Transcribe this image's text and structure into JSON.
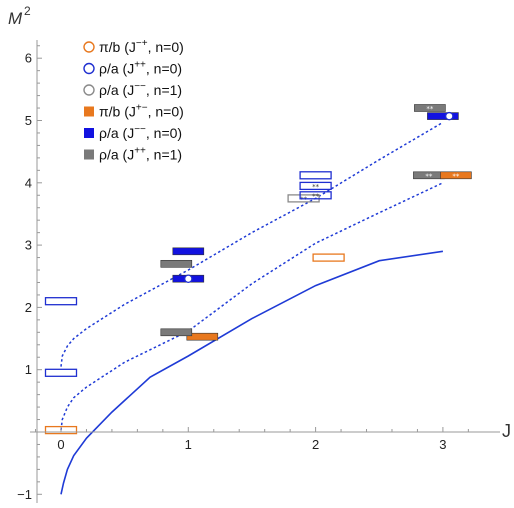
{
  "chart_data": {
    "type": "scatter",
    "xlabel": "J",
    "ylabel": "M",
    "ylabel_sup": "2",
    "xlim": [
      -0.22,
      3.45
    ],
    "ylim": [
      -1.15,
      6.55
    ],
    "xticks": [
      0,
      1,
      2,
      3
    ],
    "yticks": [
      -1,
      1,
      2,
      3,
      4,
      5,
      6
    ],
    "tick_labels_y": [
      "−1",
      "1",
      "2",
      "3",
      "4",
      "5",
      "6"
    ],
    "legend": [
      {
        "marker": "circle-open",
        "color": "#e8781e",
        "label_pre": "π/b (J",
        "label_sup": "−+",
        "label_post": ", n=0)"
      },
      {
        "marker": "circle-open",
        "color": "#1f2fd0",
        "label_pre": "ρ/a (J",
        "label_sup": "++",
        "label_post": ", n=0)"
      },
      {
        "marker": "circle-open",
        "color": "#8a8a8a",
        "label_pre": "ρ/a (J",
        "label_sup": "−−",
        "label_post": ", n=1)"
      },
      {
        "marker": "square",
        "color": "#e8781e",
        "label_pre": "π/b (J",
        "label_sup": "+−",
        "label_post": ", n=0)"
      },
      {
        "marker": "square",
        "color": "#1212e0",
        "label_pre": "ρ/a (J",
        "label_sup": "−−",
        "label_post": ", n=0)"
      },
      {
        "marker": "square",
        "color": "#7a7a7a",
        "label_pre": "ρ/a (J",
        "label_sup": "++",
        "label_post": ", n=1)"
      }
    ],
    "curves": [
      {
        "name": "solid",
        "style": "solid",
        "color": "#1f3bd6",
        "points": [
          [
            0,
            -1
          ],
          [
            0.02,
            -0.82
          ],
          [
            0.05,
            -0.6
          ],
          [
            0.1,
            -0.38
          ],
          [
            0.2,
            -0.1
          ],
          [
            0.4,
            0.32
          ],
          [
            0.7,
            0.88
          ],
          [
            1.0,
            1.22
          ],
          [
            1.5,
            1.82
          ],
          [
            2.0,
            2.35
          ],
          [
            2.5,
            2.75
          ],
          [
            3.0,
            2.9
          ]
        ]
      },
      {
        "name": "dashed-lower",
        "style": "dashed",
        "color": "#1f3bd6",
        "points": [
          [
            0,
            0.03
          ],
          [
            0.01,
            0.2
          ],
          [
            0.05,
            0.4
          ],
          [
            0.1,
            0.55
          ],
          [
            0.2,
            0.72
          ],
          [
            0.5,
            1.12
          ],
          [
            1.0,
            1.62
          ],
          [
            1.5,
            2.38
          ],
          [
            2.0,
            3.03
          ],
          [
            2.5,
            3.52
          ],
          [
            3.0,
            4.0
          ]
        ]
      },
      {
        "name": "dashed-upper",
        "style": "dashed",
        "color": "#1f3bd6",
        "points": [
          [
            0,
            1.05
          ],
          [
            0.01,
            1.22
          ],
          [
            0.05,
            1.38
          ],
          [
            0.1,
            1.5
          ],
          [
            0.2,
            1.66
          ],
          [
            0.5,
            2.05
          ],
          [
            1.0,
            2.6
          ],
          [
            1.5,
            3.2
          ],
          [
            2.0,
            3.75
          ],
          [
            2.5,
            4.37
          ],
          [
            3.0,
            4.97
          ]
        ]
      }
    ],
    "boxes": [
      {
        "series": "pi/b J-+ n=0",
        "j": 0,
        "m2": 0.03,
        "fill": "none",
        "stroke": "#e8781e",
        "stars": 0
      },
      {
        "series": "rho/a J++ n=0",
        "j": 0,
        "m2": 0.95,
        "fill": "none",
        "stroke": "#1f2fd0",
        "stars": 0
      },
      {
        "series": "rho/a J++ n=0",
        "j": 0,
        "m2": 2.1,
        "fill": "none",
        "stroke": "#1f2fd0",
        "stars": 0
      },
      {
        "series": "pi/b J+- n=0",
        "j": 1,
        "m2": 1.53,
        "fill": "#e8781e",
        "stroke": "#333333",
        "stars": 0
      },
      {
        "series": "rho/a J++ n=1",
        "j": 1,
        "m2": 1.6,
        "fill": "#7a7a7a",
        "stroke": "#333333",
        "stars": 0
      },
      {
        "series": "rho/a J++ n=1",
        "j": 1,
        "m2": 2.7,
        "fill": "#7a7a7a",
        "stroke": "#333333",
        "stars": 0
      },
      {
        "series": "rho/a J-- n=0",
        "j": 1,
        "m2": 2.46,
        "fill": "#1212e0",
        "stroke": "#333333",
        "stars": 0
      },
      {
        "series": "rho/a J-- n=0",
        "j": 1,
        "m2": 2.9,
        "fill": "#1212e0",
        "stroke": "#333333",
        "stars": 0
      },
      {
        "series": "pi/b J-+ n=0",
        "j": 2,
        "m2": 2.8,
        "fill": "none",
        "stroke": "#e8781e",
        "stars": 0
      },
      {
        "series": "rho/a J-- n=1",
        "j": 2,
        "m2": 3.75,
        "fill": "none",
        "stroke": "#8a8a8a",
        "stars": 2
      },
      {
        "series": "rho/a J++ n=0",
        "j": 2,
        "m2": 3.8,
        "fill": "none",
        "stroke": "#1f2fd0",
        "stars": 2
      },
      {
        "series": "rho/a J++ n=0",
        "j": 2,
        "m2": 3.95,
        "fill": "none",
        "stroke": "#1f2fd0",
        "stars": 2
      },
      {
        "series": "rho/a J++ n=0",
        "j": 2,
        "m2": 4.12,
        "fill": "none",
        "stroke": "#1f2fd0",
        "stars": 0
      },
      {
        "series": "rho/a J++ n=1",
        "j": 3,
        "m2": 4.12,
        "fill": "#7a7a7a",
        "stroke": "#333333",
        "stars": 2
      },
      {
        "series": "pi/b J+- n=0",
        "j": 3,
        "m2": 4.12,
        "fill": "#e8781e",
        "stroke": "#333333",
        "stars": 2
      },
      {
        "series": "rho/a J-- n=0",
        "j": 3,
        "m2": 5.07,
        "fill": "#1212e0",
        "stroke": "#333333",
        "stars": 0
      },
      {
        "series": "rho/a J++ n=1",
        "j": 3,
        "m2": 5.2,
        "fill": "#7a7a7a",
        "stroke": "#333333",
        "stars": 2
      }
    ],
    "points": [
      {
        "series": "rho/a J++ n=0",
        "j": 1,
        "m2": 2.46,
        "color": "#1f2fd0"
      },
      {
        "series": "rho/a J++ n=0",
        "j": 3.05,
        "m2": 5.07,
        "color": "#1f2fd0"
      }
    ]
  }
}
